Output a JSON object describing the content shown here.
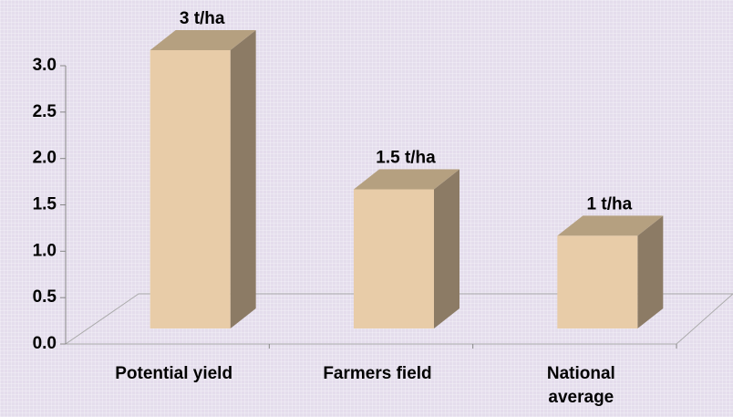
{
  "chart_data": {
    "type": "bar3d",
    "categories": [
      "Potential yield",
      "Farmers field",
      "National\naverage"
    ],
    "values": [
      3,
      1.5,
      1
    ],
    "value_labels": [
      "3 t/ha",
      "1.5 t/ha",
      "1 t/ha"
    ],
    "color": "#e8cca8",
    "ylim": [
      0,
      3
    ],
    "yticks": [
      {
        "value": 0,
        "label": "0.0"
      },
      {
        "value": 0.5,
        "label": "0.5"
      },
      {
        "value": 1,
        "label": "1.0"
      },
      {
        "value": 1.5,
        "label": "1.5"
      },
      {
        "value": 2,
        "label": "2.0"
      },
      {
        "value": 2.5,
        "label": "2.5"
      },
      {
        "value": 3,
        "label": "3.0"
      }
    ]
  }
}
